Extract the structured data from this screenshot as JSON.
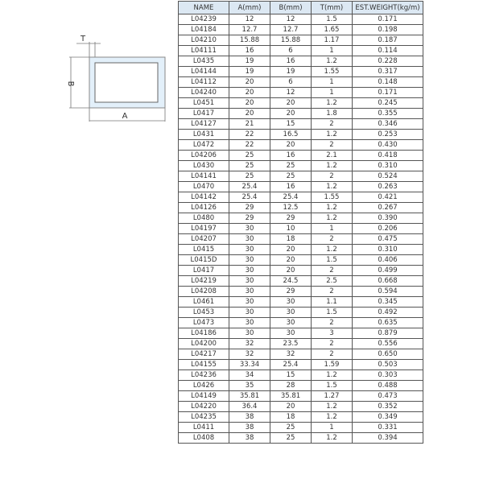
{
  "diagram": {
    "labels": {
      "t": "T",
      "b": "B",
      "a": "A"
    },
    "fill_color": "#e3f0fa"
  },
  "table": {
    "headers": [
      "NAME",
      "A(mm)",
      "B(mm)",
      "T(mm)",
      "EST.WEIGHT(kg/m)"
    ],
    "rows": [
      [
        "L04239",
        "12",
        "12",
        "1.5",
        "0.171"
      ],
      [
        "L04184",
        "12.7",
        "12.7",
        "1.65",
        "0.198"
      ],
      [
        "L04210",
        "15.88",
        "15.88",
        "1.17",
        "0.187"
      ],
      [
        "L04111",
        "16",
        "6",
        "1",
        "0.114"
      ],
      [
        "L0435",
        "19",
        "16",
        "1.2",
        "0.228"
      ],
      [
        "L04144",
        "19",
        "19",
        "1.55",
        "0.317"
      ],
      [
        "L04112",
        "20",
        "6",
        "1",
        "0.148"
      ],
      [
        "L04240",
        "20",
        "12",
        "1",
        "0.171"
      ],
      [
        "L0451",
        "20",
        "20",
        "1.2",
        "0.245"
      ],
      [
        "L0417",
        "20",
        "20",
        "1.8",
        "0.355"
      ],
      [
        "L04127",
        "21",
        "15",
        "2",
        "0.346"
      ],
      [
        "L0431",
        "22",
        "16.5",
        "1.2",
        "0.253"
      ],
      [
        "L0472",
        "22",
        "20",
        "2",
        "0.430"
      ],
      [
        "L04206",
        "25",
        "16",
        "2.1",
        "0.418"
      ],
      [
        "L0430",
        "25",
        "25",
        "1.2",
        "0.310"
      ],
      [
        "L04141",
        "25",
        "25",
        "2",
        "0.524"
      ],
      [
        "L0470",
        "25.4",
        "16",
        "1.2",
        "0.263"
      ],
      [
        "L04142",
        "25.4",
        "25.4",
        "1.55",
        "0.421"
      ],
      [
        "L04126",
        "29",
        "12.5",
        "1.2",
        "0.267"
      ],
      [
        "L0480",
        "29",
        "29",
        "1.2",
        "0.390"
      ],
      [
        "L04197",
        "30",
        "10",
        "1",
        "0.206"
      ],
      [
        "L04207",
        "30",
        "18",
        "2",
        "0.475"
      ],
      [
        "L0415",
        "30",
        "20",
        "1.2",
        "0.310"
      ],
      [
        "L0415D",
        "30",
        "20",
        "1.5",
        "0.406"
      ],
      [
        "L0417",
        "30",
        "20",
        "2",
        "0.499"
      ],
      [
        "L04219",
        "30",
        "24.5",
        "2.5",
        "0.668"
      ],
      [
        "L04208",
        "30",
        "29",
        "2",
        "0.594"
      ],
      [
        "L0461",
        "30",
        "30",
        "1.1",
        "0.345"
      ],
      [
        "L0453",
        "30",
        "30",
        "1.5",
        "0.492"
      ],
      [
        "L0473",
        "30",
        "30",
        "2",
        "0.635"
      ],
      [
        "L04186",
        "30",
        "30",
        "3",
        "0.879"
      ],
      [
        "L04200",
        "32",
        "23.5",
        "2",
        "0.556"
      ],
      [
        "L04217",
        "32",
        "32",
        "2",
        "0.650"
      ],
      [
        "L04155",
        "33.34",
        "25.4",
        "1.59",
        "0.503"
      ],
      [
        "L04236",
        "34",
        "15",
        "1.2",
        "0.303"
      ],
      [
        "L0426",
        "35",
        "28",
        "1.5",
        "0.488"
      ],
      [
        "L04149",
        "35.81",
        "35.81",
        "1.27",
        "0.473"
      ],
      [
        "L04220",
        "36.4",
        "20",
        "1.2",
        "0.352"
      ],
      [
        "L04235",
        "38",
        "18",
        "1.2",
        "0.349"
      ],
      [
        "L0411",
        "38",
        "25",
        "1",
        "0.331"
      ],
      [
        "L0408",
        "38",
        "25",
        "1.2",
        "0.394"
      ]
    ]
  }
}
